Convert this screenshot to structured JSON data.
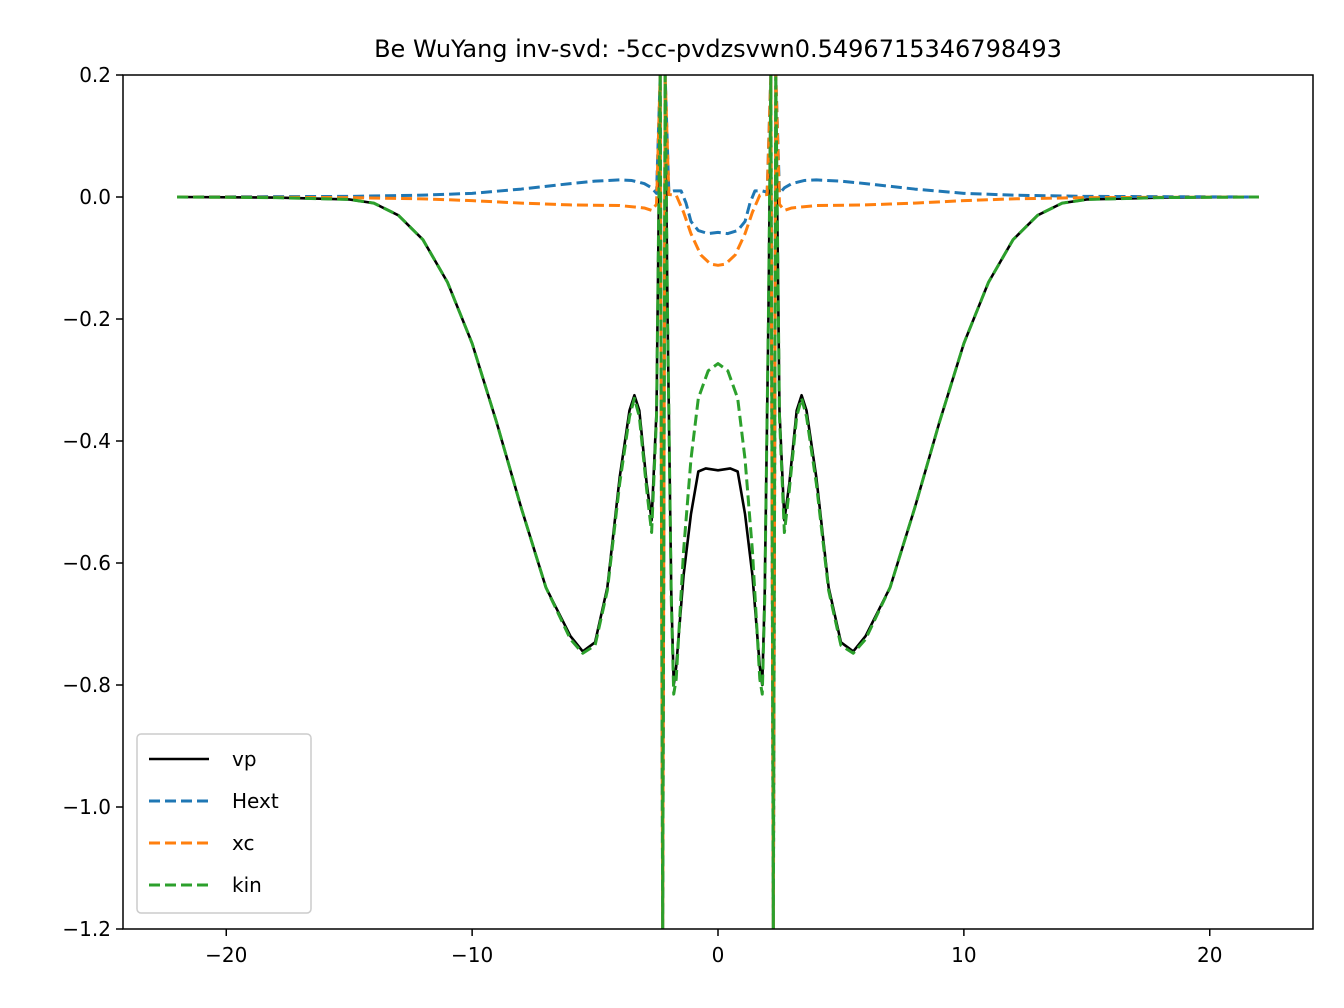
{
  "chart_data": {
    "type": "line",
    "title": "Be WuYang inv-svd: -5cc-pvdzsvwn0.5496715346798493",
    "xlabel": "",
    "ylabel": "",
    "xlim": [
      -24.2,
      24.2
    ],
    "ylim": [
      -1.2,
      0.2
    ],
    "xticks": [
      -20,
      -10,
      0,
      10,
      20
    ],
    "xtick_labels": [
      "−20",
      "−10",
      "0",
      "10",
      "20"
    ],
    "yticks": [
      0.2,
      0.0,
      -0.2,
      -0.4,
      -0.6,
      -0.8,
      -1.0,
      -1.2
    ],
    "ytick_labels": [
      "0.2",
      "0.0",
      "−0.2",
      "−0.4",
      "−0.6",
      "−0.8",
      "−1.0",
      "−1.2"
    ],
    "grid": false,
    "legend_position": "lower-left",
    "series": [
      {
        "name": "vp",
        "color": "#000000",
        "style": "solid",
        "points": [
          [
            -22,
            0
          ],
          [
            -18,
            -0.001
          ],
          [
            -15,
            -0.004
          ],
          [
            -14,
            -0.01
          ],
          [
            -13,
            -0.03
          ],
          [
            -12,
            -0.07
          ],
          [
            -11,
            -0.14
          ],
          [
            -10,
            -0.24
          ],
          [
            -9,
            -0.37
          ],
          [
            -8,
            -0.51
          ],
          [
            -7,
            -0.64
          ],
          [
            -6,
            -0.72
          ],
          [
            -5.5,
            -0.745
          ],
          [
            -5,
            -0.73
          ],
          [
            -4.5,
            -0.64
          ],
          [
            -4,
            -0.46
          ],
          [
            -3.6,
            -0.35
          ],
          [
            -3.4,
            -0.325
          ],
          [
            -3.2,
            -0.35
          ],
          [
            -2.9,
            -0.47
          ],
          [
            -2.7,
            -0.53
          ],
          [
            -2.5,
            -0.35
          ],
          [
            -2.35,
            0.2
          ],
          [
            -2.25,
            -1.2
          ],
          [
            -2.15,
            0.2
          ],
          [
            -2.05,
            -0.2
          ],
          [
            -1.9,
            -0.65
          ],
          [
            -1.8,
            -0.8
          ],
          [
            -1.7,
            -0.77
          ],
          [
            -1.4,
            -0.62
          ],
          [
            -1.1,
            -0.52
          ],
          [
            -0.8,
            -0.45
          ],
          [
            -0.5,
            -0.445
          ],
          [
            0,
            -0.448
          ],
          [
            0.5,
            -0.445
          ],
          [
            0.8,
            -0.45
          ],
          [
            1.1,
            -0.52
          ],
          [
            1.4,
            -0.62
          ],
          [
            1.7,
            -0.77
          ],
          [
            1.8,
            -0.8
          ],
          [
            1.9,
            -0.65
          ],
          [
            2.05,
            -0.2
          ],
          [
            2.15,
            0.2
          ],
          [
            2.25,
            -1.2
          ],
          [
            2.35,
            0.2
          ],
          [
            2.5,
            -0.35
          ],
          [
            2.7,
            -0.53
          ],
          [
            2.9,
            -0.47
          ],
          [
            3.2,
            -0.35
          ],
          [
            3.4,
            -0.325
          ],
          [
            3.6,
            -0.35
          ],
          [
            4,
            -0.46
          ],
          [
            4.5,
            -0.64
          ],
          [
            5,
            -0.73
          ],
          [
            5.5,
            -0.745
          ],
          [
            6,
            -0.72
          ],
          [
            7,
            -0.64
          ],
          [
            8,
            -0.51
          ],
          [
            9,
            -0.37
          ],
          [
            10,
            -0.24
          ],
          [
            11,
            -0.14
          ],
          [
            12,
            -0.07
          ],
          [
            13,
            -0.03
          ],
          [
            14,
            -0.01
          ],
          [
            15,
            -0.004
          ],
          [
            18,
            -0.001
          ],
          [
            22,
            0
          ]
        ]
      },
      {
        "name": "Hext",
        "color": "#1f77b4",
        "style": "dashed",
        "points": [
          [
            -22,
            0
          ],
          [
            -15,
            0.001
          ],
          [
            -12,
            0.003
          ],
          [
            -10,
            0.006
          ],
          [
            -8,
            0.013
          ],
          [
            -6,
            0.022
          ],
          [
            -5,
            0.026
          ],
          [
            -4,
            0.028
          ],
          [
            -3.5,
            0.027
          ],
          [
            -3,
            0.022
          ],
          [
            -2.7,
            0.015
          ],
          [
            -2.5,
            0.006
          ],
          [
            -2.35,
            0.2
          ],
          [
            -2.25,
            -1.2
          ],
          [
            -2.15,
            0.2
          ],
          [
            -2.0,
            0.008
          ],
          [
            -1.8,
            0.01
          ],
          [
            -1.5,
            0.01
          ],
          [
            -1.3,
            -0.01
          ],
          [
            -1.1,
            -0.04
          ],
          [
            -0.8,
            -0.055
          ],
          [
            -0.4,
            -0.06
          ],
          [
            0,
            -0.058
          ],
          [
            0.4,
            -0.06
          ],
          [
            0.8,
            -0.055
          ],
          [
            1.1,
            -0.04
          ],
          [
            1.3,
            -0.01
          ],
          [
            1.5,
            0.01
          ],
          [
            1.8,
            0.01
          ],
          [
            2.0,
            0.008
          ],
          [
            2.15,
            0.2
          ],
          [
            2.25,
            -1.2
          ],
          [
            2.35,
            0.2
          ],
          [
            2.5,
            0.006
          ],
          [
            2.7,
            0.015
          ],
          [
            3,
            0.022
          ],
          [
            3.5,
            0.027
          ],
          [
            4,
            0.028
          ],
          [
            5,
            0.026
          ],
          [
            6,
            0.022
          ],
          [
            8,
            0.013
          ],
          [
            10,
            0.006
          ],
          [
            12,
            0.003
          ],
          [
            15,
            0.001
          ],
          [
            22,
            0
          ]
        ]
      },
      {
        "name": "xc",
        "color": "#ff7f0e",
        "style": "dashed",
        "points": [
          [
            -22,
            0
          ],
          [
            -15,
            -0.001
          ],
          [
            -12,
            -0.003
          ],
          [
            -10,
            -0.006
          ],
          [
            -8,
            -0.01
          ],
          [
            -6,
            -0.013
          ],
          [
            -4,
            -0.014
          ],
          [
            -3,
            -0.018
          ],
          [
            -2.7,
            -0.022
          ],
          [
            -2.5,
            -0.012
          ],
          [
            -2.35,
            0.2
          ],
          [
            -2.25,
            -1.2
          ],
          [
            -2.15,
            0.2
          ],
          [
            -2.0,
            0.004
          ],
          [
            -1.7,
            0.003
          ],
          [
            -1.4,
            -0.025
          ],
          [
            -1.1,
            -0.06
          ],
          [
            -0.7,
            -0.095
          ],
          [
            -0.3,
            -0.11
          ],
          [
            0,
            -0.112
          ],
          [
            0.3,
            -0.11
          ],
          [
            0.7,
            -0.095
          ],
          [
            1.1,
            -0.06
          ],
          [
            1.4,
            -0.025
          ],
          [
            1.7,
            0.003
          ],
          [
            2.0,
            0.004
          ],
          [
            2.15,
            0.2
          ],
          [
            2.25,
            -1.2
          ],
          [
            2.35,
            0.2
          ],
          [
            2.5,
            -0.012
          ],
          [
            2.7,
            -0.022
          ],
          [
            3,
            -0.018
          ],
          [
            4,
            -0.014
          ],
          [
            6,
            -0.013
          ],
          [
            8,
            -0.01
          ],
          [
            10,
            -0.006
          ],
          [
            12,
            -0.003
          ],
          [
            15,
            -0.001
          ],
          [
            22,
            0
          ]
        ]
      },
      {
        "name": "kin",
        "color": "#2ca02c",
        "style": "dashed",
        "points": [
          [
            -22,
            0
          ],
          [
            -18,
            -0.001
          ],
          [
            -15,
            -0.004
          ],
          [
            -14,
            -0.01
          ],
          [
            -13,
            -0.03
          ],
          [
            -12,
            -0.07
          ],
          [
            -11,
            -0.14
          ],
          [
            -10,
            -0.24
          ],
          [
            -9,
            -0.37
          ],
          [
            -8,
            -0.51
          ],
          [
            -7,
            -0.64
          ],
          [
            -6,
            -0.725
          ],
          [
            -5.5,
            -0.748
          ],
          [
            -5,
            -0.735
          ],
          [
            -4.5,
            -0.645
          ],
          [
            -4,
            -0.47
          ],
          [
            -3.6,
            -0.36
          ],
          [
            -3.4,
            -0.33
          ],
          [
            -3.2,
            -0.36
          ],
          [
            -2.9,
            -0.48
          ],
          [
            -2.7,
            -0.55
          ],
          [
            -2.5,
            -0.36
          ],
          [
            -2.35,
            0.2
          ],
          [
            -2.25,
            -1.2
          ],
          [
            -2.15,
            0.2
          ],
          [
            -2.05,
            -0.2
          ],
          [
            -1.9,
            -0.66
          ],
          [
            -1.8,
            -0.815
          ],
          [
            -1.7,
            -0.79
          ],
          [
            -1.4,
            -0.58
          ],
          [
            -1.1,
            -0.43
          ],
          [
            -0.8,
            -0.33
          ],
          [
            -0.4,
            -0.285
          ],
          [
            0,
            -0.273
          ],
          [
            0.4,
            -0.285
          ],
          [
            0.8,
            -0.33
          ],
          [
            1.1,
            -0.43
          ],
          [
            1.4,
            -0.58
          ],
          [
            1.7,
            -0.79
          ],
          [
            1.8,
            -0.815
          ],
          [
            1.9,
            -0.66
          ],
          [
            2.05,
            -0.2
          ],
          [
            2.15,
            0.2
          ],
          [
            2.25,
            -1.2
          ],
          [
            2.35,
            0.2
          ],
          [
            2.5,
            -0.36
          ],
          [
            2.7,
            -0.55
          ],
          [
            2.9,
            -0.48
          ],
          [
            3.2,
            -0.36
          ],
          [
            3.4,
            -0.33
          ],
          [
            3.6,
            -0.36
          ],
          [
            4,
            -0.47
          ],
          [
            4.5,
            -0.645
          ],
          [
            5,
            -0.735
          ],
          [
            5.5,
            -0.748
          ],
          [
            6,
            -0.725
          ],
          [
            7,
            -0.64
          ],
          [
            8,
            -0.51
          ],
          [
            9,
            -0.37
          ],
          [
            10,
            -0.24
          ],
          [
            11,
            -0.14
          ],
          [
            12,
            -0.07
          ],
          [
            13,
            -0.03
          ],
          [
            14,
            -0.01
          ],
          [
            15,
            -0.004
          ],
          [
            18,
            -0.001
          ],
          [
            22,
            0
          ]
        ]
      }
    ]
  }
}
